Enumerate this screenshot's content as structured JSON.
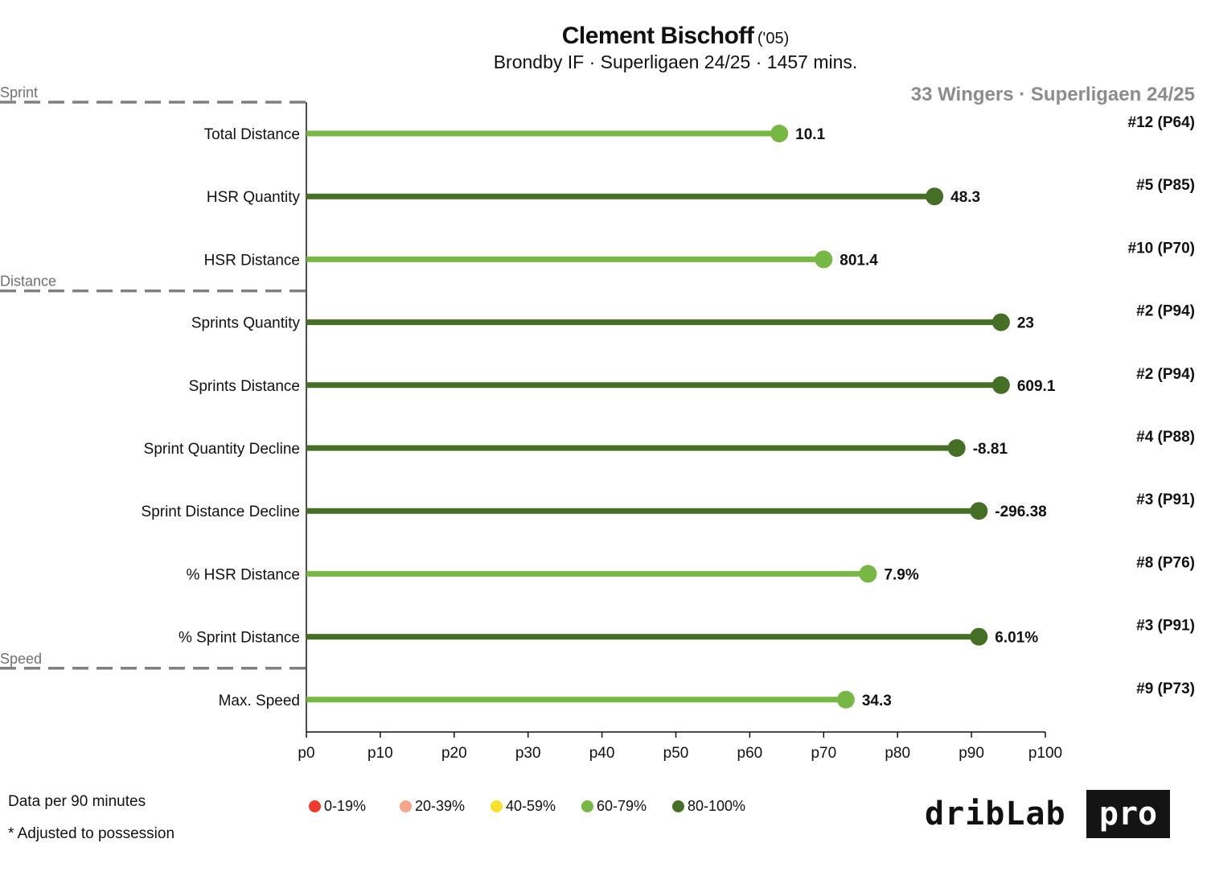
{
  "header": {
    "player_name": "Clement Bischoff",
    "age_label": "('05)",
    "subtitle": "Brondby IF · Superligaen 24/25 · 1457 mins.",
    "cohort": "33 Wingers · Superligaen 24/25"
  },
  "footer": {
    "note_per90": "Data per 90 minutes",
    "note_adjusted": "* Adjusted to possession"
  },
  "legend": [
    {
      "label": "0-19%",
      "color": "#f03a2e"
    },
    {
      "label": "20-39%",
      "color": "#f4a58a"
    },
    {
      "label": "40-59%",
      "color": "#f7e12a"
    },
    {
      "label": "60-79%",
      "color": "#76b843"
    },
    {
      "label": "80-100%",
      "color": "#446f24"
    }
  ],
  "logo": {
    "word": "dribLab",
    "badge": "pro"
  },
  "chart_data": {
    "type": "lollipop",
    "x_axis": {
      "range": [
        0,
        100
      ],
      "ticks": [
        "p0",
        "p10",
        "p20",
        "p30",
        "p40",
        "p50",
        "p60",
        "p70",
        "p80",
        "p90",
        "p100"
      ]
    },
    "groups": [
      {
        "label": "Sprint",
        "starts_before": "Total Distance"
      },
      {
        "label": "Distance",
        "starts_before": "Sprints Quantity"
      },
      {
        "label": "Speed",
        "starts_before": "Max. Speed"
      }
    ],
    "metrics": [
      {
        "label": "Total Distance",
        "percentile": 64,
        "value": "10.1",
        "rank": "#12 (P64)",
        "color": "#76b843"
      },
      {
        "label": "HSR Quantity",
        "percentile": 85,
        "value": "48.3",
        "rank": "#5 (P85)",
        "color": "#446f24"
      },
      {
        "label": "HSR Distance",
        "percentile": 70,
        "value": "801.4",
        "rank": "#10 (P70)",
        "color": "#76b843"
      },
      {
        "label": "Sprints Quantity",
        "percentile": 94,
        "value": "23",
        "rank": "#2 (P94)",
        "color": "#446f24"
      },
      {
        "label": "Sprints Distance",
        "percentile": 94,
        "value": "609.1",
        "rank": "#2 (P94)",
        "color": "#446f24"
      },
      {
        "label": "Sprint Quantity Decline",
        "percentile": 88,
        "value": "-8.81",
        "rank": "#4 (P88)",
        "color": "#446f24"
      },
      {
        "label": "Sprint Distance Decline",
        "percentile": 91,
        "value": "-296.38",
        "rank": "#3 (P91)",
        "color": "#446f24"
      },
      {
        "label": "% HSR Distance",
        "percentile": 76,
        "value": "7.9%",
        "rank": "#8 (P76)",
        "color": "#76b843"
      },
      {
        "label": "% Sprint Distance",
        "percentile": 91,
        "value": "6.01%",
        "rank": "#3 (P91)",
        "color": "#446f24"
      },
      {
        "label": "Max. Speed",
        "percentile": 73,
        "value": "34.3",
        "rank": "#9 (P73)",
        "color": "#76b843"
      }
    ]
  }
}
